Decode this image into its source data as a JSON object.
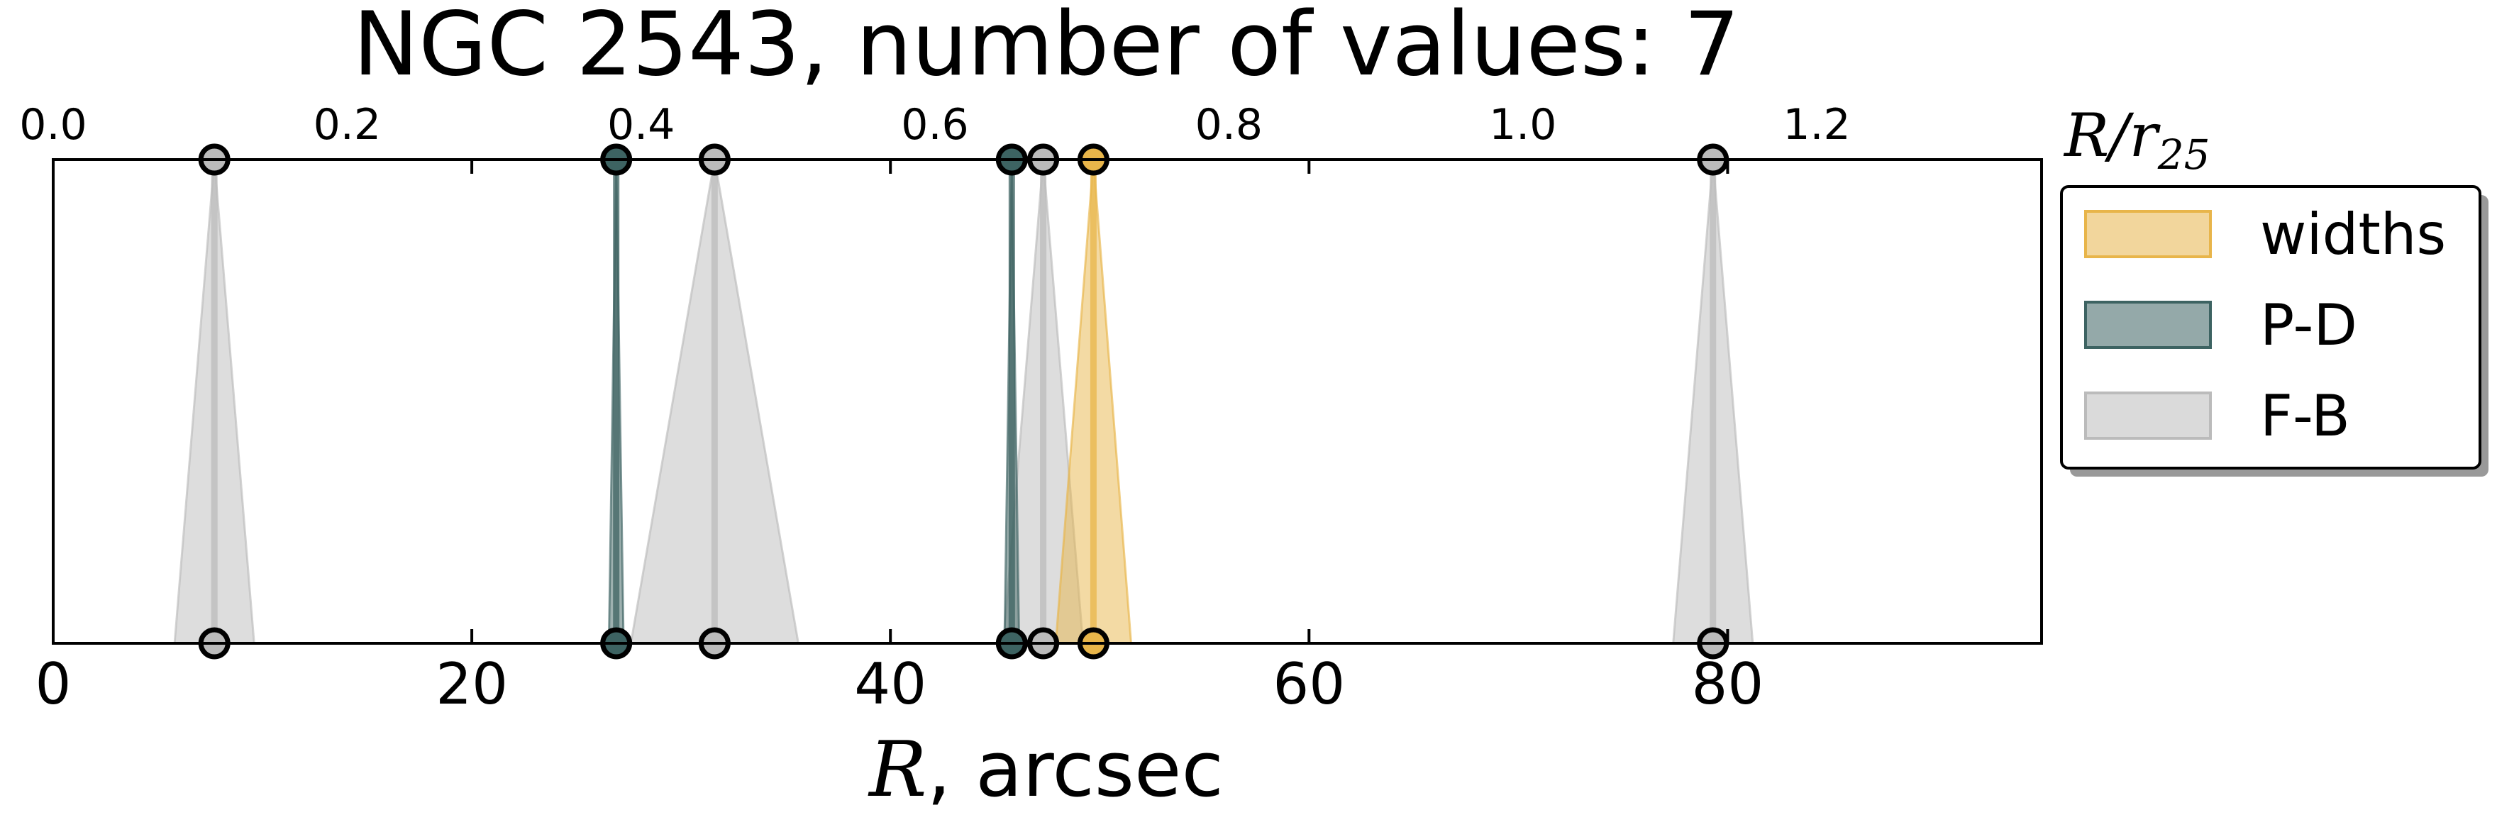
{
  "chart_data": {
    "type": "scatter",
    "title": "NGC 2543, number of values: 7",
    "xlabel_math": "R",
    "xlabel_text": ", arcsec",
    "xlim": [
      0,
      95
    ],
    "xticks": [
      0,
      20,
      40,
      60,
      80
    ],
    "xticklabels": [
      "0",
      "20",
      "40",
      "60",
      "80"
    ],
    "top_axis": {
      "label_math": "R/r",
      "label_sub": "25",
      "xlim": [
        0,
        1.353
      ],
      "xticks": [
        0.0,
        0.2,
        0.4,
        0.6,
        0.8,
        1.0,
        1.2
      ],
      "xticklabels": [
        "0.0",
        "0.2",
        "0.4",
        "0.6",
        "0.8",
        "1.0",
        "1.2"
      ]
    },
    "grid": false,
    "legend_placement": "right, outside axes, top",
    "series": [
      {
        "name": "widths",
        "color": "#e8b54a",
        "points": [
          {
            "x": 49.7,
            "width": 1.8
          }
        ]
      },
      {
        "name": "P-D",
        "color": "#3d6362",
        "points": [
          {
            "x": 26.9,
            "width": 0.35
          },
          {
            "x": 45.8,
            "width": 0.35
          }
        ]
      },
      {
        "name": "F-B",
        "color": "#bbbbbb",
        "points": [
          {
            "x": 7.7,
            "width": 1.9
          },
          {
            "x": 31.6,
            "width": 4.0
          },
          {
            "x": 47.3,
            "width": 1.9
          },
          {
            "x": 79.3,
            "width": 1.9
          }
        ]
      }
    ]
  }
}
